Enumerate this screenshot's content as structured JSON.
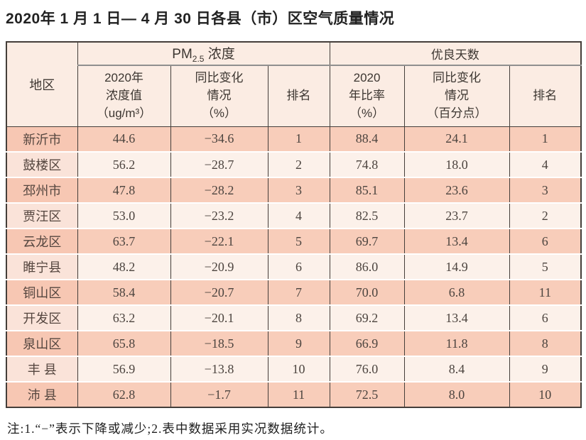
{
  "page": {
    "title": "2020年 1 月 1 日— 4 月 30 日各县（市）区空气质量情况"
  },
  "table": {
    "headers": {
      "region": "地区",
      "pm25_group": {
        "prefix": "PM",
        "sub": "2.5",
        "suffix": " 浓度"
      },
      "good_days_group": "优良天数",
      "pm_value": {
        "line1": "2020年",
        "line2": "浓度值",
        "line3": "（ug/m³）"
      },
      "pm_change": {
        "line1": "同比变化",
        "line2": "情况",
        "line3": "（%）"
      },
      "pm_rank": "排名",
      "good_rate": {
        "line1": "2020",
        "line2": "年比率",
        "line3": "（%）"
      },
      "good_change": {
        "line1": "同比变化",
        "line2": "情况",
        "line3": "（百分点）"
      },
      "good_rank": "排名"
    },
    "rows": [
      {
        "region": "新沂市",
        "pm_value": "44.6",
        "pm_change": "−34.6",
        "pm_rank": "1",
        "good_rate": "88.4",
        "good_change": "24.1",
        "good_rank": "1"
      },
      {
        "region": "鼓楼区",
        "pm_value": "56.2",
        "pm_change": "−28.7",
        "pm_rank": "2",
        "good_rate": "74.8",
        "good_change": "18.0",
        "good_rank": "4"
      },
      {
        "region": "邳州市",
        "pm_value": "47.8",
        "pm_change": "−28.2",
        "pm_rank": "3",
        "good_rate": "85.1",
        "good_change": "23.6",
        "good_rank": "3"
      },
      {
        "region": "贾汪区",
        "pm_value": "53.0",
        "pm_change": "−23.2",
        "pm_rank": "4",
        "good_rate": "82.5",
        "good_change": "23.7",
        "good_rank": "2"
      },
      {
        "region": "云龙区",
        "pm_value": "63.7",
        "pm_change": "−22.1",
        "pm_rank": "5",
        "good_rate": "69.7",
        "good_change": "13.4",
        "good_rank": "6"
      },
      {
        "region": "睢宁县",
        "pm_value": "48.2",
        "pm_change": "−20.9",
        "pm_rank": "6",
        "good_rate": "86.0",
        "good_change": "14.9",
        "good_rank": "5"
      },
      {
        "region": "铜山区",
        "pm_value": "58.4",
        "pm_change": "−20.7",
        "pm_rank": "7",
        "good_rate": "70.0",
        "good_change": "6.8",
        "good_rank": "11"
      },
      {
        "region": "开发区",
        "pm_value": "63.2",
        "pm_change": "−20.1",
        "pm_rank": "8",
        "good_rate": "69.2",
        "good_change": "13.4",
        "good_rank": "6"
      },
      {
        "region": "泉山区",
        "pm_value": "65.8",
        "pm_change": "−18.5",
        "pm_rank": "9",
        "good_rate": "66.9",
        "good_change": "11.8",
        "good_rank": "8"
      },
      {
        "region": "丰 县",
        "pm_value": "56.9",
        "pm_change": "−13.8",
        "pm_rank": "10",
        "good_rate": "76.0",
        "good_change": "8.4",
        "good_rank": "9"
      },
      {
        "region": "沛 县",
        "pm_value": "62.8",
        "pm_change": "−1.7",
        "pm_rank": "11",
        "good_rate": "72.5",
        "good_change": "8.0",
        "good_rank": "10"
      }
    ]
  },
  "note": "注:1.“−”表示下降或减少;2.表中数据采用实况数据统计。",
  "colors": {
    "row_odd": "#f8cdba",
    "row_even": "#fcf1ea",
    "region_odd": "#f7c7b3",
    "region_even": "#fae3d9",
    "header_bg": "#fbece3",
    "border_dark": "#443e3a",
    "gray_line": "#8f8f8f"
  },
  "chart_data": {
    "type": "table",
    "title": "2020年1月1日—4月30日各县（市）区空气质量情况",
    "column_groups": [
      "地区",
      "PM2.5浓度",
      "优良天数"
    ],
    "columns": [
      "地区",
      "PM2.5浓度 2020年浓度值（ug/m³）",
      "PM2.5浓度 同比变化情况（%）",
      "PM2.5浓度 排名",
      "优良天数 2020年比率（%）",
      "优良天数 同比变化情况（百分点）",
      "优良天数 排名"
    ],
    "rows": [
      [
        "新沂市",
        44.6,
        -34.6,
        1,
        88.4,
        24.1,
        1
      ],
      [
        "鼓楼区",
        56.2,
        -28.7,
        2,
        74.8,
        18.0,
        4
      ],
      [
        "邳州市",
        47.8,
        -28.2,
        3,
        85.1,
        23.6,
        3
      ],
      [
        "贾汪区",
        53.0,
        -23.2,
        4,
        82.5,
        23.7,
        2
      ],
      [
        "云龙区",
        63.7,
        -22.1,
        5,
        69.7,
        13.4,
        6
      ],
      [
        "睢宁县",
        48.2,
        -20.9,
        6,
        86.0,
        14.9,
        5
      ],
      [
        "铜山区",
        58.4,
        -20.7,
        7,
        70.0,
        6.8,
        11
      ],
      [
        "开发区",
        63.2,
        -20.1,
        8,
        69.2,
        13.4,
        6
      ],
      [
        "泉山区",
        65.8,
        -18.5,
        9,
        66.9,
        11.8,
        8
      ],
      [
        "丰县",
        56.9,
        -13.8,
        10,
        76.0,
        8.4,
        9
      ],
      [
        "沛县",
        62.8,
        -1.7,
        11,
        72.5,
        8.0,
        10
      ]
    ],
    "note": "注:1.“−”表示下降或减少;2.表中数据采用实况数据统计。"
  }
}
